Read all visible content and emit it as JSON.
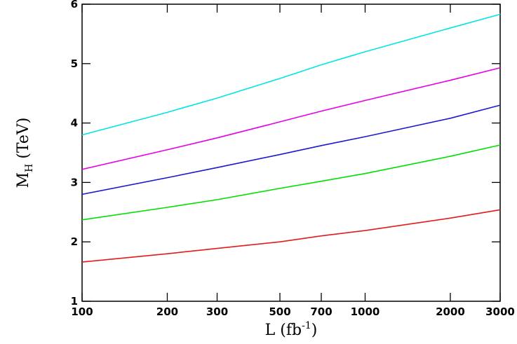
{
  "chart_data": {
    "type": "line",
    "xlabel": {
      "main": "L (fb",
      "sup": "-1",
      "rest": ")"
    },
    "ylabel": {
      "main": "M",
      "sub": "H",
      "rest": " (TeV)"
    },
    "x": [
      100,
      200,
      300,
      500,
      700,
      1000,
      2000,
      3000
    ],
    "xscale": "log",
    "xlim": [
      100,
      3000
    ],
    "xticks": [
      100,
      200,
      300,
      500,
      700,
      1000,
      2000,
      3000
    ],
    "ylim": [
      1,
      6
    ],
    "yticks": [
      1,
      2,
      3,
      4,
      5,
      6
    ],
    "series": [
      {
        "color": "#00e5e5",
        "values": [
          3.8,
          4.18,
          4.42,
          4.75,
          4.98,
          5.2,
          5.6,
          5.83
        ]
      },
      {
        "color": "#e500e5",
        "values": [
          3.22,
          3.55,
          3.75,
          4.02,
          4.2,
          4.38,
          4.72,
          4.93
        ]
      },
      {
        "color": "#1a1ad0",
        "values": [
          2.8,
          3.08,
          3.25,
          3.47,
          3.62,
          3.77,
          4.08,
          4.3
        ]
      },
      {
        "color": "#00e000",
        "values": [
          2.37,
          2.58,
          2.71,
          2.9,
          3.02,
          3.15,
          3.44,
          3.63
        ]
      },
      {
        "color": "#e51a1a",
        "values": [
          1.66,
          1.8,
          1.89,
          2.0,
          2.1,
          2.19,
          2.4,
          2.54
        ]
      }
    ]
  }
}
